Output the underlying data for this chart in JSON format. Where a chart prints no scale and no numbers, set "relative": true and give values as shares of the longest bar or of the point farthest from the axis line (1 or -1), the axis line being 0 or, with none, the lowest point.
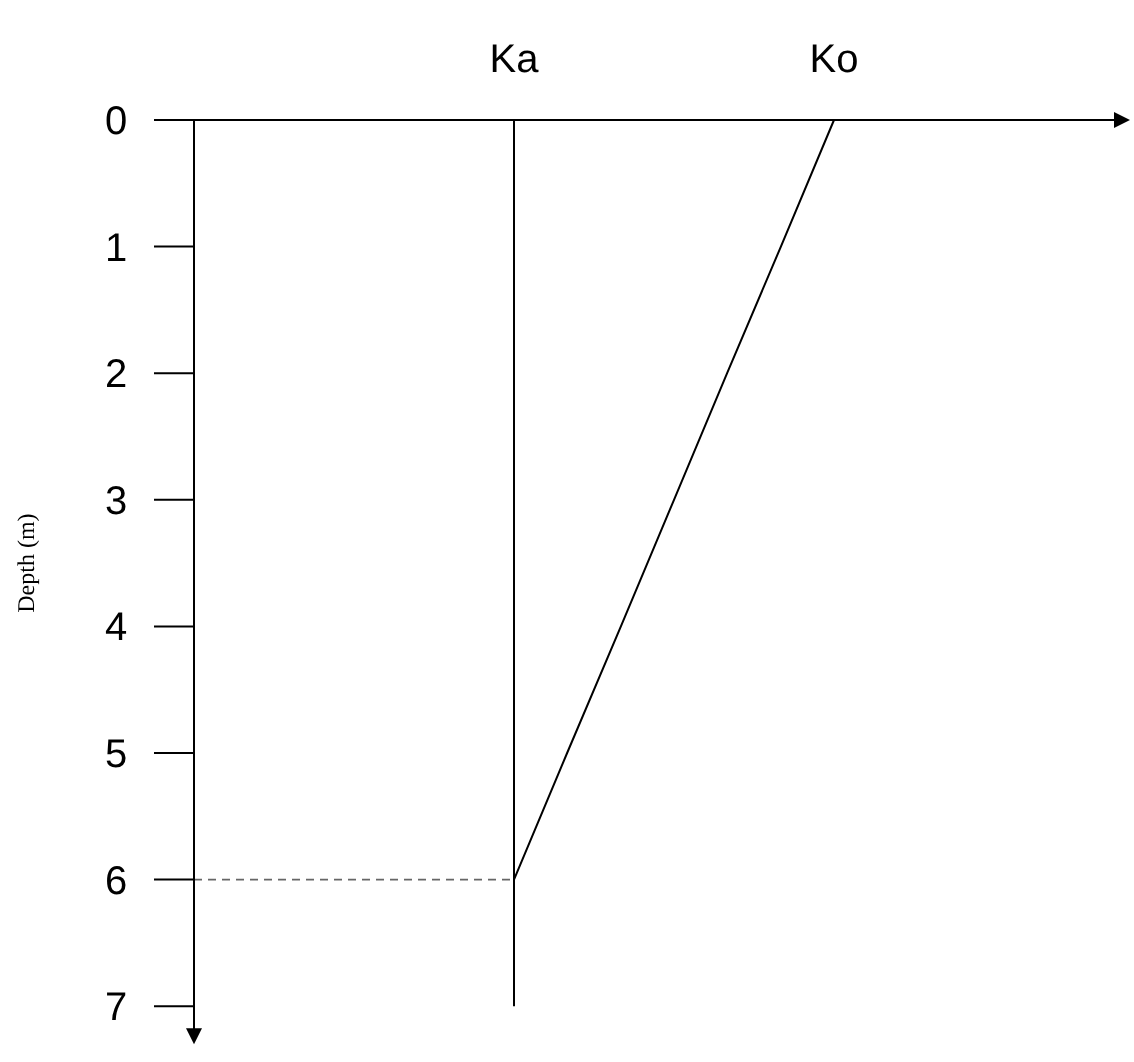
{
  "chart_data": {
    "type": "line",
    "orientation": "horizontal",
    "relative": true,
    "ylabel": "Depth (m)",
    "categories": [
      "0",
      "1",
      "2",
      "3",
      "4",
      "5",
      "6",
      "7"
    ],
    "tick_labels": "y",
    "grid": false,
    "marker": "none",
    "line_style": "solid",
    "series": [
      {
        "name": "Ka",
        "color": "#000000",
        "values": [
          0.5,
          0.5,
          0.5,
          0.5,
          0.5,
          0.5,
          0.5,
          0.5
        ]
      },
      {
        "name": "Ko",
        "color": "#000000",
        "values": [
          1,
          0.917,
          0.833,
          0.75,
          0.667,
          0.583,
          0.5,
          null
        ]
      }
    ],
    "ref_lines": [
      {
        "axis": "y",
        "value": "6",
        "color": "#666666",
        "line_style": "dashed"
      }
    ]
  }
}
